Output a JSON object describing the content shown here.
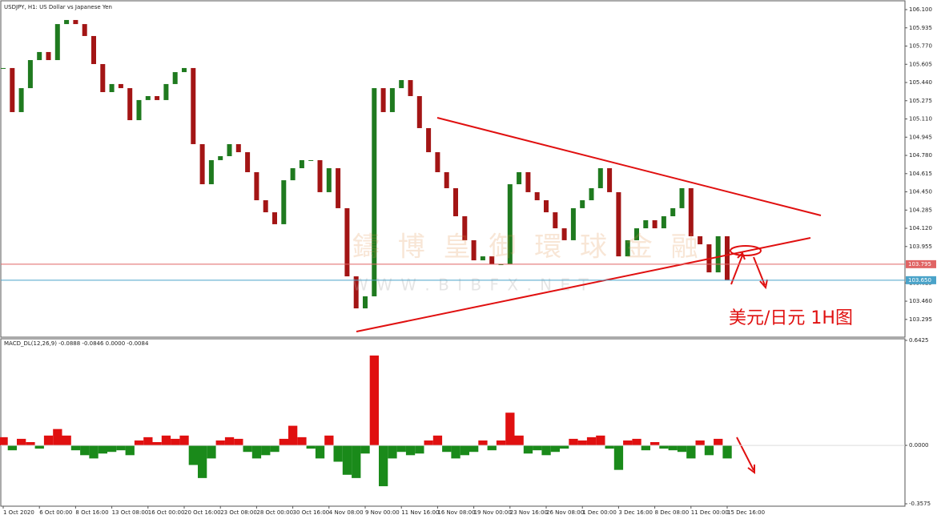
{
  "chart_data": [
    {
      "type": "candlestick",
      "title": "USDJPY, H1:  US Dollar vs Japanese Yen",
      "watermark": "鑄 博 皇 御 環 球 金 融",
      "watermark_url": "W W W . B I B F X . N E T",
      "annotation": "美元/日元 1H图",
      "up_color": "#1f7a1f",
      "down_color": "#a31515",
      "xtick_labels": [
        "1 Oct 2020",
        "6 Oct 00:00",
        "8 Oct 16:00",
        "13 Oct 08:00",
        "16 Oct 00:00",
        "20 Oct 16:00",
        "23 Oct 08:00",
        "28 Oct 00:00",
        "30 Oct 16:00",
        "4 Nov 08:00",
        "9 Nov 00:00",
        "11 Nov 16:00",
        "16 Nov 08:00",
        "19 Nov 00:00",
        "23 Nov 16:00",
        "26 Nov 08:00",
        "1 Dec 00:00",
        "3 Dec 16:00",
        "8 Dec 08:00",
        "11 Dec 00:00",
        "15 Dec 16:00"
      ],
      "values": [
        105.571,
        105.172,
        105.389,
        105.643,
        105.716,
        105.643,
        105.969,
        106.006,
        105.969,
        105.861,
        105.607,
        105.353,
        105.426,
        105.389,
        105.099,
        105.281,
        105.317,
        105.281,
        105.426,
        105.534,
        105.571,
        104.882,
        104.519,
        104.737,
        104.773,
        104.882,
        104.809,
        104.628,
        104.374,
        104.265,
        104.157,
        104.555,
        104.664,
        104.737,
        104.737,
        104.447,
        104.664,
        104.302,
        103.685,
        103.395,
        103.504,
        105.389,
        105.172,
        105.389,
        105.462,
        105.317,
        105.027,
        104.809,
        104.628,
        104.483,
        104.229,
        104.012,
        103.83,
        103.866,
        103.794,
        103.794,
        104.519,
        104.628,
        104.447,
        104.374,
        104.265,
        104.12,
        104.012,
        104.302,
        104.374,
        104.483,
        104.664,
        104.447,
        103.866,
        104.012,
        104.12,
        104.193,
        104.12,
        104.229,
        104.302,
        104.483,
        104.048,
        103.975,
        103.721,
        104.048,
        103.649
      ],
      "ylim": [
        103.143,
        106.187
      ],
      "yticks": [
        {
          "value": 106.1,
          "label": "106.100"
        },
        105.935,
        {
          "value": 105.77,
          "label": "105.770"
        },
        105.605,
        {
          "value": 105.44,
          "label": "105.440"
        },
        105.275,
        {
          "value": 105.11,
          "label": "105.110"
        },
        104.945,
        {
          "value": 104.78,
          "label": "104.780"
        },
        104.615,
        {
          "value": 104.45,
          "label": "104.450"
        },
        104.285,
        {
          "value": 104.12,
          "label": "104.120"
        },
        103.955,
        103.625,
        {
          "value": 103.46,
          "label": "103.460"
        },
        103.295
      ],
      "hlines": [
        {
          "value": 103.795,
          "label": "103.795",
          "color": "#e06464"
        },
        {
          "value": 103.65,
          "label": "103.650",
          "color": "#4aa3c9"
        }
      ]
    },
    {
      "type": "bar",
      "title": "MACD_DL(12,26,9) -0.0888 -0.0846 0.0000 -0.0084",
      "positive_color": "#e01010",
      "negative_color": "#1a8a1a",
      "values": [
        0.05,
        -0.03,
        0.04,
        0.02,
        -0.02,
        0.06,
        0.1,
        0.06,
        -0.03,
        -0.06,
        -0.08,
        -0.05,
        -0.04,
        -0.03,
        -0.06,
        0.03,
        0.05,
        0.02,
        0.06,
        0.04,
        0.06,
        -0.12,
        -0.2,
        -0.08,
        0.03,
        0.05,
        0.04,
        -0.04,
        -0.08,
        -0.06,
        -0.04,
        0.04,
        0.12,
        0.05,
        -0.02,
        -0.08,
        0.06,
        -0.1,
        -0.18,
        -0.2,
        -0.05,
        0.55,
        -0.25,
        -0.08,
        -0.04,
        -0.06,
        -0.05,
        0.03,
        0.06,
        -0.04,
        -0.08,
        -0.06,
        -0.04,
        0.03,
        -0.03,
        0.03,
        0.2,
        0.06,
        -0.05,
        -0.03,
        -0.06,
        -0.04,
        -0.02,
        0.04,
        0.03,
        0.05,
        0.06,
        -0.02,
        -0.15,
        0.03,
        0.04,
        -0.03,
        0.02,
        -0.02,
        -0.03,
        -0.04,
        -0.08,
        0.03,
        -0.06,
        0.04,
        -0.08
      ],
      "ylim": [
        -0.3575,
        0.6425
      ],
      "yticks": [
        0.6425,
        {
          "value": 0,
          "label": "0.0000"
        },
        -0.3575
      ]
    }
  ]
}
